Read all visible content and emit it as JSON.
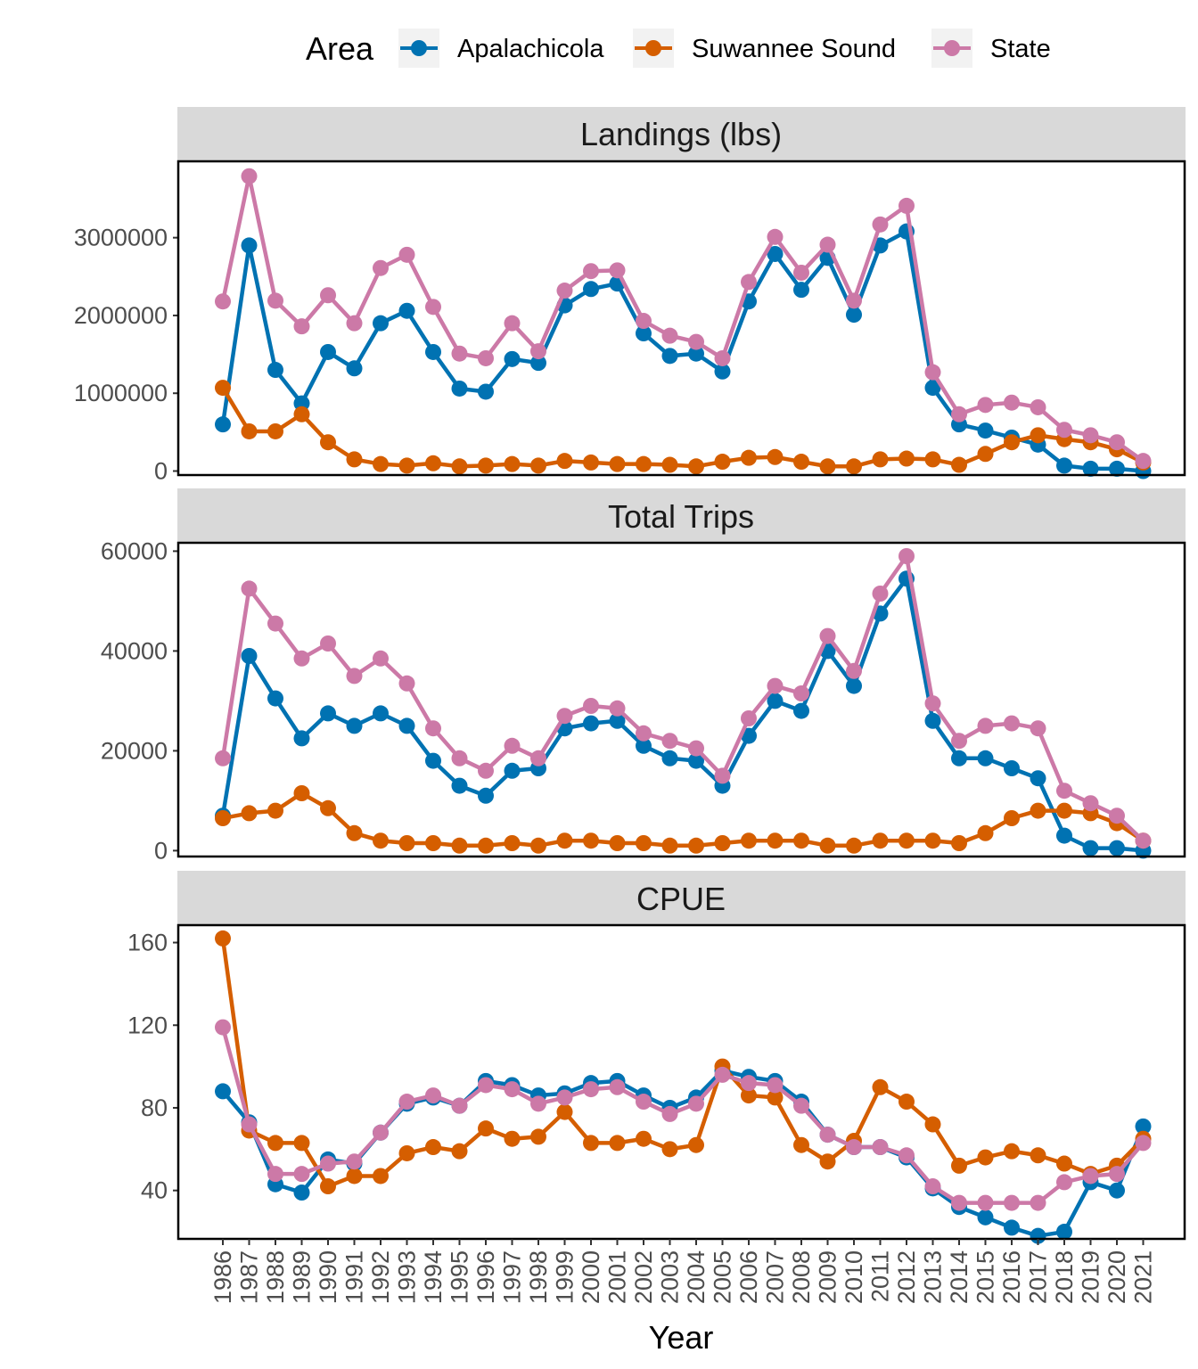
{
  "chart_data": {
    "type": "line",
    "xlabel": "Year",
    "legend": {
      "title": "Area",
      "position": "top"
    },
    "x": [
      1986,
      1987,
      1988,
      1989,
      1990,
      1991,
      1992,
      1993,
      1994,
      1995,
      1996,
      1997,
      1998,
      1999,
      2000,
      2001,
      2002,
      2003,
      2004,
      2005,
      2006,
      2007,
      2008,
      2009,
      2010,
      2011,
      2012,
      2013,
      2014,
      2015,
      2016,
      2017,
      2018,
      2019,
      2020,
      2021
    ],
    "series_meta": [
      {
        "name": "Apalachicola",
        "color": "#0072B2"
      },
      {
        "name": "Suwannee Sound",
        "color": "#D55E00"
      },
      {
        "name": "State",
        "color": "#CC79A7"
      }
    ],
    "panels": [
      {
        "title": "Landings (lbs)",
        "ylim": [
          -40000,
          3970000
        ],
        "yticks": [
          0,
          1000000,
          2000000,
          3000000
        ],
        "ytick_labels": [
          "0",
          "1000000",
          "2000000",
          "3000000"
        ],
        "series": [
          {
            "name": "Apalachicola",
            "values": [
              600000,
              2900000,
              1300000,
              870000,
              1530000,
              1320000,
              1900000,
              2060000,
              1530000,
              1060000,
              1020000,
              1440000,
              1390000,
              2130000,
              2340000,
              2410000,
              1770000,
              1480000,
              1510000,
              1280000,
              2180000,
              2790000,
              2330000,
              2740000,
              2010000,
              2900000,
              3080000,
              1070000,
              600000,
              520000,
              430000,
              340000,
              70000,
              30000,
              30000,
              0
            ]
          },
          {
            "name": "Suwannee Sound",
            "values": [
              1070000,
              510000,
              510000,
              730000,
              370000,
              150000,
              90000,
              70000,
              100000,
              60000,
              70000,
              90000,
              70000,
              130000,
              110000,
              90000,
              90000,
              80000,
              60000,
              120000,
              170000,
              180000,
              120000,
              60000,
              60000,
              150000,
              160000,
              150000,
              80000,
              220000,
              370000,
              460000,
              410000,
              370000,
              280000,
              110000
            ]
          },
          {
            "name": "State",
            "values": [
              2180000,
              3790000,
              2190000,
              1860000,
              2260000,
              1900000,
              2610000,
              2780000,
              2110000,
              1510000,
              1450000,
              1900000,
              1540000,
              2320000,
              2570000,
              2580000,
              1930000,
              1740000,
              1660000,
              1450000,
              2430000,
              3010000,
              2550000,
              2910000,
              2190000,
              3170000,
              3410000,
              1270000,
              730000,
              850000,
              880000,
              820000,
              530000,
              460000,
              370000,
              130000
            ]
          }
        ]
      },
      {
        "title": "Total Trips",
        "ylim": [
          -1000,
          61500
        ],
        "yticks": [
          0,
          20000,
          40000,
          60000
        ],
        "ytick_labels": [
          "0",
          "20000",
          "40000",
          "60000"
        ],
        "series": [
          {
            "name": "Apalachicola",
            "values": [
              7000,
              39000,
              30500,
              22500,
              27500,
              25000,
              27500,
              25000,
              18000,
              13000,
              11000,
              16000,
              16500,
              24500,
              25500,
              26000,
              21000,
              18500,
              18000,
              13000,
              23000,
              30000,
              28000,
              40000,
              33000,
              47500,
              54500,
              26000,
              18500,
              18500,
              16500,
              14500,
              3000,
              500,
              500,
              0
            ]
          },
          {
            "name": "Suwannee Sound",
            "values": [
              6500,
              7500,
              8000,
              11500,
              8500,
              3500,
              2000,
              1500,
              1500,
              1000,
              1000,
              1500,
              1000,
              2000,
              2000,
              1500,
              1500,
              1000,
              1000,
              1500,
              2000,
              2000,
              2000,
              1000,
              1000,
              2000,
              2000,
              2000,
              1500,
              3500,
              6500,
              8000,
              8000,
              7500,
              5500,
              2000
            ]
          },
          {
            "name": "State",
            "values": [
              18500,
              52500,
              45500,
              38500,
              41500,
              35000,
              38500,
              33500,
              24500,
              18500,
              16000,
              21000,
              18500,
              27000,
              29000,
              28500,
              23500,
              22000,
              20500,
              15000,
              26500,
              33000,
              31500,
              43000,
              36000,
              51500,
              59000,
              29500,
              22000,
              25000,
              25500,
              24500,
              12000,
              9500,
              7000,
              2000
            ]
          }
        ]
      },
      {
        "title": "CPUE",
        "ylim": [
          17,
          168
        ],
        "yticks": [
          40,
          80,
          120,
          160
        ],
        "ytick_labels": [
          "40",
          "80",
          "120",
          "160"
        ],
        "series": [
          {
            "name": "Apalachicola",
            "values": [
              88,
              73,
              43,
              39,
              55,
              53,
              68,
              82,
              85,
              81,
              93,
              91,
              86,
              87,
              92,
              93,
              86,
              80,
              85,
              98,
              95,
              93,
              83,
              67,
              61,
              61,
              56,
              41,
              32,
              27,
              22,
              18,
              20,
              44,
              40,
              71
            ]
          },
          {
            "name": "Suwannee Sound",
            "values": [
              162,
              69,
              63,
              63,
              42,
              47,
              47,
              58,
              61,
              59,
              70,
              65,
              66,
              78,
              63,
              63,
              65,
              60,
              62,
              100,
              86,
              85,
              62,
              54,
              64,
              90,
              83,
              72,
              52,
              56,
              59,
              57,
              53,
              48,
              52,
              65
            ]
          },
          {
            "name": "State",
            "values": [
              119,
              72,
              48,
              48,
              53,
              54,
              68,
              83,
              86,
              81,
              91,
              89,
              82,
              85,
              89,
              90,
              83,
              77,
              82,
              96,
              92,
              91,
              81,
              67,
              61,
              61,
              57,
              42,
              34,
              34,
              34,
              34,
              44,
              47,
              48,
              63
            ]
          }
        ]
      }
    ]
  }
}
